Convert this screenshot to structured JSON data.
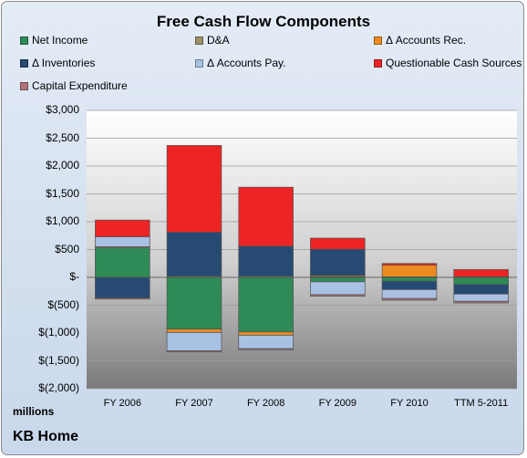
{
  "chart_data": {
    "type": "bar",
    "stacked": true,
    "title": "Free Cash Flow Components",
    "categories": [
      "FY 2006",
      "FY 2007",
      "FY 2008",
      "FY 2009",
      "FY 2010",
      "TTM 5-2011"
    ],
    "yticks": [
      "$3,000",
      "$2,500",
      "$2,000",
      "$1,500",
      "$1,000",
      "$500",
      "$-",
      "$(500)",
      "$(1,000)",
      "$(1,500)",
      "$(2,000)"
    ],
    "ylim": [
      -2000,
      3000
    ],
    "units": "millions",
    "legend_position": "top",
    "grid": true,
    "series": [
      {
        "name": "Net Income",
        "color": "#2e8b57",
        "values": [
          530,
          -930,
          -980,
          -80,
          -70,
          -130
        ]
      },
      {
        "name": "D&A",
        "color": "#9c8f6a",
        "values": [
          20,
          20,
          20,
          15,
          10,
          10
        ]
      },
      {
        "name": "Δ Accounts Rec.",
        "color": "#ed8a1f",
        "values": [
          0,
          -60,
          -60,
          20,
          210,
          0
        ]
      },
      {
        "name": "Δ Inventories",
        "color": "#274a73",
        "values": [
          -370,
          790,
          540,
          470,
          -150,
          -170
        ]
      },
      {
        "name": "Δ Accounts Pay.",
        "color": "#a9c1e3",
        "values": [
          180,
          -330,
          -240,
          -230,
          -160,
          -130
        ]
      },
      {
        "name": "Questionable Cash Sources",
        "color": "#ee2424",
        "values": [
          300,
          1560,
          1060,
          200,
          30,
          130
        ]
      },
      {
        "name": "Capital Expenditure",
        "color": "#b0747a",
        "values": [
          -20,
          -20,
          -20,
          -30,
          -30,
          -30
        ]
      }
    ]
  },
  "company": "KB Home"
}
